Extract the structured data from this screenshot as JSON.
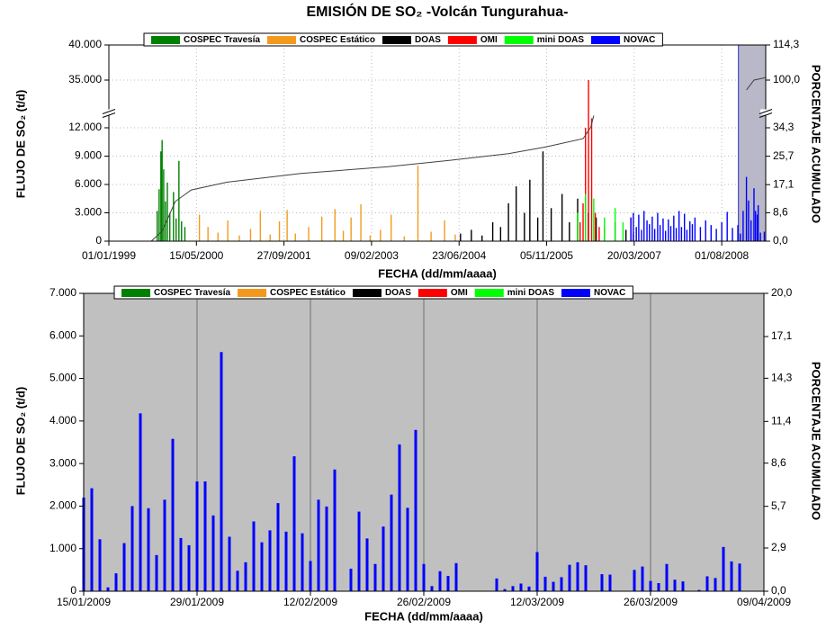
{
  "chart_data": [
    {
      "type": "bar",
      "title": "EMISIÓN DE SO₂  -Volcán Tungurahua-",
      "x_label": "FECHA (dd/mm/aaaa)",
      "y_label": "FLUJO DE SO₂ (t/d)",
      "y2_label": "PORCENTAJE ACUMULADO",
      "xlim": [
        "01/01/1999",
        "09/04/2009"
      ],
      "xticks": [
        "01/01/1999",
        "15/05/2000",
        "27/09/2001",
        "09/02/2003",
        "23/06/2004",
        "05/11/2005",
        "20/03/2007",
        "01/08/2008"
      ],
      "ylim": [
        0,
        40000
      ],
      "yticks": [
        0,
        {
          "value": 3000,
          "label": "3.000"
        },
        {
          "value": 6000,
          "label": "6.000"
        },
        {
          "value": 9000,
          "label": "9.000"
        },
        {
          "value": 12000,
          "label": "12.000"
        },
        {
          "value": 35000,
          "label": "35.000"
        },
        {
          "value": 40000,
          "label": "40.000"
        }
      ],
      "y2lim": [
        0,
        114.3
      ],
      "y2ticks": [
        {
          "value": 0,
          "label": "0,0"
        },
        {
          "value": 8.6,
          "label": "8,6"
        },
        {
          "value": 17.1,
          "label": "17,1"
        },
        {
          "value": 25.7,
          "label": "25,7"
        },
        {
          "value": 34.3,
          "label": "34,3"
        },
        {
          "value": 100,
          "label": "100,0"
        },
        {
          "value": 114.3,
          "label": "114,3"
        }
      ],
      "axis_break": true,
      "grid": true,
      "series": [
        {
          "name": "COSPEC Travesía",
          "color": "#008000",
          "x": [
            "04/10/1999",
            "15/10/1999",
            "25/10/1999",
            "01/11/1999",
            "10/11/1999",
            "20/11/1999",
            "01/12/1999",
            "15/12/1999",
            "05/01/2000",
            "20/01/2000",
            "05/02/2000",
            "20/02/2000",
            "10/03/2000"
          ],
          "values": [
            3200,
            5500,
            9500,
            10700,
            7600,
            4200,
            6200,
            3000,
            5200,
            2400,
            8500,
            2100,
            1500
          ]
        },
        {
          "name": "COSPEC Estático",
          "color": "#f39a1e",
          "x": [
            "01/06/2000",
            "20/07/2000",
            "15/09/2000",
            "10/11/2000",
            "15/01/2001",
            "20/03/2001",
            "15/05/2001",
            "10/07/2001",
            "01/09/2001",
            "15/10/2001",
            "01/12/2001",
            "15/02/2002",
            "01/05/2002",
            "15/07/2002",
            "01/09/2002",
            "15/10/2002",
            "10/12/2002",
            "01/02/2003",
            "01/04/2003",
            "01/06/2003",
            "15/08/2003",
            "01/11/2003",
            "15/01/2004",
            "01/04/2004",
            "01/06/2004"
          ],
          "values": [
            2800,
            1500,
            900,
            2200,
            600,
            1300,
            3200,
            700,
            2100,
            3300,
            800,
            1500,
            2600,
            3400,
            1100,
            2500,
            3900,
            600,
            1200,
            2800,
            500,
            8000,
            1000,
            2200,
            700
          ]
        },
        {
          "name": "DOAS",
          "color": "#000000",
          "x": [
            "01/07/2004",
            "01/09/2004",
            "01/11/2004",
            "01/01/2005",
            "15/02/2005",
            "01/04/2005",
            "15/05/2005",
            "01/07/2005",
            "01/08/2005",
            "15/09/2005",
            "15/10/2005",
            "01/12/2005",
            "01/02/2006",
            "15/03/2006",
            "01/05/2006",
            "01/07/2006",
            "15/08/2006",
            "01/10/2006",
            "01/12/2006",
            "01/02/2007",
            "15/03/2007"
          ],
          "values": [
            800,
            1200,
            600,
            2000,
            1500,
            4000,
            5800,
            3000,
            6500,
            2500,
            9500,
            3500,
            5000,
            2000,
            4500,
            3000,
            2500,
            1500,
            2000,
            1200,
            800
          ]
        },
        {
          "name": "OMI",
          "color": "#ff0000",
          "x": [
            "15/05/2006",
            "01/06/2006",
            "15/06/2006",
            "02/07/2006",
            "20/07/2006",
            "10/08/2006",
            "01/09/2006",
            "01/03/2007"
          ],
          "values": [
            2000,
            4000,
            12000,
            35000,
            13000,
            3000,
            1500,
            2500
          ]
        },
        {
          "name": "mini DOAS",
          "color": "#00ff00",
          "x": [
            "01/05/2006",
            "15/06/2006",
            "01/08/2006",
            "01/10/2006",
            "01/12/2006",
            "15/01/2007"
          ],
          "values": [
            3000,
            5000,
            4500,
            2500,
            3500,
            2000
          ]
        },
        {
          "name": "NOVAC",
          "color": "#0000ff",
          "x": [
            "01/03/2007",
            "15/03/2007",
            "01/04/2007",
            "15/04/2007",
            "01/05/2007",
            "15/05/2007",
            "01/06/2007",
            "15/06/2007",
            "01/07/2007",
            "15/07/2007",
            "01/08/2007",
            "15/08/2007",
            "01/09/2007",
            "15/09/2007",
            "01/10/2007",
            "15/10/2007",
            "01/11/2007",
            "15/11/2007",
            "01/12/2007",
            "15/12/2007",
            "01/01/2008",
            "15/01/2008",
            "01/02/2008",
            "15/02/2008",
            "01/03/2008",
            "01/04/2008",
            "01/05/2008",
            "01/06/2008",
            "01/07/2008",
            "01/08/2008",
            "01/09/2008",
            "01/10/2008",
            "01/11/2008",
            "15/11/2008",
            "01/12/2008",
            "20/12/2008",
            "01/01/2009",
            "15/01/2009",
            "01/02/2009",
            "10/02/2009",
            "20/02/2009",
            "25/02/2009",
            "10/03/2009",
            "01/04/2009"
          ],
          "values": [
            2500,
            3000,
            1500,
            2800,
            1200,
            3200,
            2200,
            1800,
            2600,
            1300,
            3000,
            1700,
            2400,
            1100,
            2300,
            1600,
            2700,
            1400,
            3200,
            1500,
            2900,
            1200,
            2100,
            1800,
            2500,
            1500,
            2200,
            1700,
            1300,
            2000,
            3100,
            1400,
            1700,
            800,
            3200,
            6800,
            4300,
            2200,
            5600,
            3200,
            2800,
            3800,
            900,
            1000
          ]
        }
      ],
      "cumulative": {
        "axis": "y2",
        "color": "#404040",
        "x": [
          "31/08/1999",
          "01/11/1999",
          "15/01/2000",
          "15/04/2000",
          "01/11/2000",
          "01/01/2002",
          "15/05/2003",
          "10/05/2004",
          "01/04/2005",
          "01/11/2005",
          "01/06/2006",
          "15/07/2006",
          "01/08/2006",
          null,
          "20/12/2008",
          "01/02/2009",
          "09/04/2009"
        ],
        "values": [
          0,
          3,
          12,
          15.5,
          17.8,
          20.5,
          22.5,
          24.5,
          26.5,
          28.5,
          31,
          34.5,
          38,
          null,
          96,
          100,
          101
        ]
      }
    },
    {
      "type": "bar",
      "x_label": "FECHA (dd/mm/aaaa)",
      "y_label": "FLUJO DE SO₂ (t/d)",
      "y2_label": "PORCENTAJE ACUMULADO",
      "xlim": [
        "15/01/2009",
        "09/04/2009"
      ],
      "xticks": [
        "15/01/2009",
        "29/01/2009",
        "12/02/2009",
        "26/02/2009",
        "12/03/2009",
        "26/03/2009",
        "09/04/2009"
      ],
      "ylim": [
        0,
        7000
      ],
      "yticks": [
        0,
        {
          "value": 1000,
          "label": "1.000"
        },
        {
          "value": 2000,
          "label": "2.000"
        },
        {
          "value": 3000,
          "label": "3.000"
        },
        {
          "value": 4000,
          "label": "4.000"
        },
        {
          "value": 5000,
          "label": "5.000"
        },
        {
          "value": 6000,
          "label": "6.000"
        },
        {
          "value": 7000,
          "label": "7.000"
        }
      ],
      "y2lim": [
        0,
        20
      ],
      "y2ticks": [
        {
          "value": 0,
          "label": "0,0"
        },
        {
          "value": 2.9,
          "label": "2,9"
        },
        {
          "value": 5.7,
          "label": "5,7"
        },
        {
          "value": 8.6,
          "label": "8,6"
        },
        {
          "value": 11.4,
          "label": "11,4"
        },
        {
          "value": 14.3,
          "label": "14,3"
        },
        {
          "value": 17.1,
          "label": "17,1"
        },
        {
          "value": 20,
          "label": "20,0"
        }
      ],
      "grid": "x",
      "background": "#c0c0c0",
      "series": [
        {
          "name": "COSPEC Travesía",
          "color": "#008000",
          "x": [],
          "values": []
        },
        {
          "name": "COSPEC Estático",
          "color": "#f39a1e",
          "x": [],
          "values": []
        },
        {
          "name": "DOAS",
          "color": "#000000",
          "x": [],
          "values": []
        },
        {
          "name": "OMI",
          "color": "#ff0000",
          "x": [],
          "values": []
        },
        {
          "name": "mini DOAS",
          "color": "#00ff00",
          "x": [],
          "values": []
        },
        {
          "name": "NOVAC",
          "color": "#0000ff",
          "x": [
            "15/01/2009",
            "16/01/2009",
            "17/01/2009",
            "18/01/2009",
            "19/01/2009",
            "20/01/2009",
            "21/01/2009",
            "22/01/2009",
            "23/01/2009",
            "24/01/2009",
            "25/01/2009",
            "26/01/2009",
            "27/01/2009",
            "28/01/2009",
            "29/01/2009",
            "30/01/2009",
            "31/01/2009",
            "01/02/2009",
            "02/02/2009",
            "03/02/2009",
            "04/02/2009",
            "05/02/2009",
            "06/02/2009",
            "07/02/2009",
            "08/02/2009",
            "09/02/2009",
            "10/02/2009",
            "11/02/2009",
            "12/02/2009",
            "13/02/2009",
            "14/02/2009",
            "15/02/2009",
            "17/02/2009",
            "18/02/2009",
            "19/02/2009",
            "20/02/2009",
            "21/02/2009",
            "22/02/2009",
            "23/02/2009",
            "24/02/2009",
            "25/02/2009",
            "26/02/2009",
            "27/02/2009",
            "28/02/2009",
            "01/03/2009",
            "02/03/2009",
            "07/03/2009",
            "08/03/2009",
            "09/03/2009",
            "10/03/2009",
            "11/03/2009",
            "12/03/2009",
            "13/03/2009",
            "14/03/2009",
            "15/03/2009",
            "16/03/2009",
            "17/03/2009",
            "18/03/2009",
            "20/03/2009",
            "21/03/2009",
            "24/03/2009",
            "25/03/2009",
            "26/03/2009",
            "27/03/2009",
            "28/03/2009",
            "29/03/2009",
            "30/03/2009",
            "01/04/2009",
            "02/04/2009",
            "03/04/2009",
            "04/04/2009",
            "05/04/2009",
            "06/04/2009"
          ],
          "values": [
            2200,
            2420,
            1220,
            90,
            420,
            1130,
            2000,
            4180,
            1950,
            850,
            2150,
            3580,
            1250,
            1080,
            2580,
            2580,
            1780,
            5620,
            1280,
            480,
            680,
            1640,
            1150,
            1430,
            2070,
            1400,
            3170,
            1360,
            710,
            2150,
            1990,
            2860,
            530,
            1870,
            1240,
            640,
            1520,
            2270,
            3450,
            1960,
            3790,
            640,
            120,
            470,
            360,
            660,
            300,
            50,
            120,
            180,
            110,
            920,
            340,
            220,
            330,
            620,
            680,
            610,
            400,
            390,
            500,
            580,
            240,
            190,
            640,
            270,
            230,
            30,
            350,
            310,
            1040,
            700,
            650
          ]
        }
      ]
    }
  ]
}
